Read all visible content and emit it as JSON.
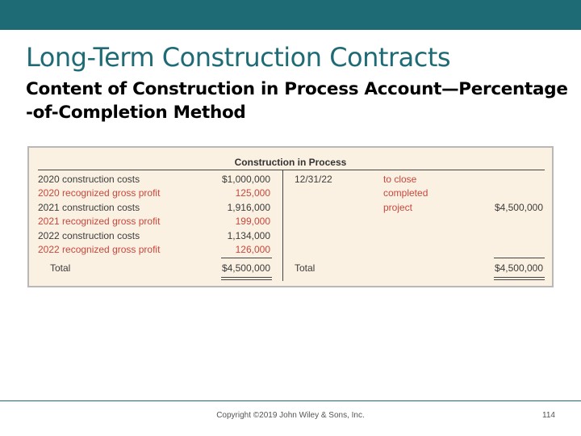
{
  "slide": {
    "title": "Long-Term Construction Contracts",
    "subtitle": "Content of Construction in Process Account—Percentage -of-Completion Method"
  },
  "account": {
    "title": "Construction in Process",
    "debits": [
      {
        "label": "2020 construction costs",
        "amount": "$1,000,000",
        "type": "cost"
      },
      {
        "label": "2020 recognized gross profit",
        "amount": "125,000",
        "type": "profit"
      },
      {
        "label": "2021 construction costs",
        "amount": "1,916,000",
        "type": "cost"
      },
      {
        "label": "2021 recognized gross profit",
        "amount": "199,000",
        "type": "profit"
      },
      {
        "label": "2022 construction costs",
        "amount": "1,134,000",
        "type": "cost"
      },
      {
        "label": "2022 recognized gross profit",
        "amount": "126,000",
        "type": "profit"
      }
    ],
    "debit_total_label": "Total",
    "debit_total": "$4,500,000",
    "credit": {
      "date": "12/31/22",
      "note_lines": [
        "to close",
        "completed",
        "project"
      ],
      "amount": "$4,500,000"
    },
    "credit_total_label": "Total",
    "credit_total": "$4,500,000",
    "colors": {
      "cost_text": "#3c3c3c",
      "profit_text": "#c8473d",
      "background": "#faf1e2"
    }
  },
  "footer": {
    "copyright": "Copyright ©2019 John Wiley & Sons, Inc.",
    "page": "114"
  },
  "theme": {
    "accent": "#1e6b76"
  }
}
